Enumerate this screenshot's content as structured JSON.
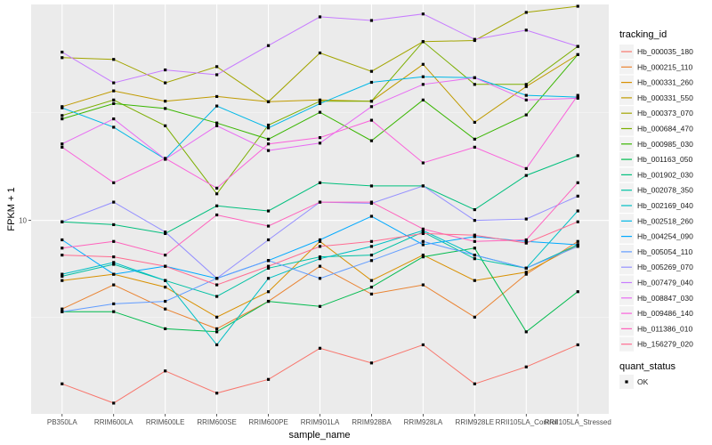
{
  "chart_data": {
    "type": "line",
    "title": "",
    "xlabel": "sample_name",
    "ylabel": "FPKM + 1",
    "yscale": "log10",
    "ylim": [
      2.5,
      47
    ],
    "y_ticks": [
      10
    ],
    "y_tick_labels": [
      "10"
    ],
    "grid": true,
    "legend_position": "right",
    "categories": [
      "PB350LA",
      "RRIM600LA",
      "RRIM600LE",
      "RRIM600SE",
      "RRIM600PE",
      "RRIM901LA",
      "RRIM928BA",
      "RRIM928LA",
      "RRIM928LE",
      "RRII105LA_Control",
      "RRII105LA_Stressed"
    ],
    "legend_title": "tracking_id",
    "shape_legend_title": "quant_status",
    "shape_legend_items": [
      "OK"
    ],
    "series": [
      {
        "name": "Hb_000035_180",
        "color": "#F8766D",
        "values": [
          3.1,
          2.7,
          3.4,
          2.9,
          3.2,
          4.0,
          3.6,
          4.1,
          3.1,
          3.5,
          4.1
        ]
      },
      {
        "name": "Hb_000215_110",
        "color": "#EA8331",
        "values": [
          5.3,
          6.3,
          5.3,
          4.6,
          5.6,
          7.2,
          5.9,
          6.3,
          5.0,
          6.8,
          8.6
        ]
      },
      {
        "name": "Hb_000331_260",
        "color": "#D89000",
        "values": [
          6.5,
          6.8,
          6.2,
          5.0,
          6.0,
          8.6,
          6.5,
          7.8,
          6.5,
          6.9,
          8.4
        ]
      },
      {
        "name": "Hb_000331_550",
        "color": "#C09B00",
        "values": [
          22.6,
          25.3,
          23.5,
          24.3,
          23.4,
          23.7,
          23.5,
          30.6,
          20.2,
          26.1,
          32.8
        ]
      },
      {
        "name": "Hb_000373_070",
        "color": "#A3A500",
        "values": [
          32.1,
          31.7,
          26.8,
          30.1,
          23.4,
          33.2,
          29.1,
          36.0,
          36.3,
          44.4,
          46.4
        ]
      },
      {
        "name": "Hb_000684_470",
        "color": "#7CAE00",
        "values": [
          21.2,
          23.7,
          19.7,
          12.1,
          19.8,
          23.5,
          23.5,
          36.0,
          26.5,
          26.5,
          34.8
        ]
      },
      {
        "name": "Hb_000985_030",
        "color": "#39B600",
        "values": [
          20.7,
          23.1,
          22.3,
          20.1,
          17.9,
          21.7,
          17.7,
          23.7,
          17.9,
          21.3,
          32.8
        ]
      },
      {
        "name": "Hb_001163_050",
        "color": "#00BB4E",
        "values": [
          5.2,
          5.2,
          4.6,
          4.5,
          5.6,
          5.4,
          6.2,
          7.7,
          8.2,
          4.5,
          6.0
        ]
      },
      {
        "name": "Hb_001902_030",
        "color": "#00BF7D",
        "values": [
          9.9,
          9.7,
          9.1,
          11.1,
          10.7,
          13.1,
          12.8,
          12.8,
          10.8,
          13.8,
          15.9
        ]
      },
      {
        "name": "Hb_002078_350",
        "color": "#00C1A3",
        "values": [
          6.7,
          7.3,
          6.5,
          5.8,
          7.1,
          7.7,
          7.8,
          9.2,
          7.6,
          7.1,
          8.4
        ]
      },
      {
        "name": "Hb_002169_040",
        "color": "#00BFC4",
        "values": [
          6.8,
          7.4,
          6.5,
          4.1,
          6.6,
          7.6,
          8.3,
          9.3,
          7.8,
          7.1,
          10.7
        ]
      },
      {
        "name": "Hb_002518_260",
        "color": "#00B8E7",
        "values": [
          22.4,
          19.5,
          15.5,
          22.7,
          19.4,
          23.1,
          26.9,
          28.0,
          27.8,
          24.5,
          24.2
        ]
      },
      {
        "name": "Hb_004254_090",
        "color": "#00A9FF",
        "values": [
          8.7,
          6.8,
          7.2,
          6.6,
          7.5,
          8.7,
          10.3,
          8.4,
          8.9,
          8.6,
          8.4
        ]
      },
      {
        "name": "Hb_005054_110",
        "color": "#619CFF",
        "values": [
          5.2,
          5.5,
          5.6,
          6.6,
          7.5,
          6.6,
          7.5,
          8.6,
          7.8,
          7.1,
          8.3
        ]
      },
      {
        "name": "Hb_005269_070",
        "color": "#9590FF",
        "values": [
          9.9,
          11.4,
          9.2,
          6.6,
          8.7,
          11.4,
          11.3,
          12.8,
          10.0,
          10.1,
          11.9
        ]
      },
      {
        "name": "Hb_007479_040",
        "color": "#C77CFF",
        "values": [
          33.4,
          26.8,
          29.4,
          28.4,
          35.0,
          43.0,
          41.9,
          43.9,
          36.6,
          39.1,
          34.8
        ]
      },
      {
        "name": "Hb_008847_030",
        "color": "#E76BF3",
        "values": [
          17.3,
          20.7,
          15.5,
          19.7,
          16.5,
          17.4,
          22.6,
          26.5,
          27.8,
          23.7,
          24.0
        ]
      },
      {
        "name": "Hb_009486_140",
        "color": "#FA62DB",
        "values": [
          16.9,
          13.1,
          15.6,
          12.6,
          17.3,
          18.1,
          20.5,
          15.1,
          16.9,
          14.5,
          24.5
        ]
      },
      {
        "name": "Hb_011386_010",
        "color": "#FF62BC",
        "values": [
          8.2,
          8.6,
          7.8,
          10.4,
          9.6,
          11.4,
          11.4,
          9.4,
          8.6,
          8.7,
          13.1
        ]
      },
      {
        "name": "Hb_156279_020",
        "color": "#FF6C91",
        "values": [
          7.8,
          7.7,
          7.2,
          6.3,
          7.2,
          8.3,
          8.6,
          9.1,
          9.0,
          8.5,
          9.9
        ]
      }
    ]
  }
}
